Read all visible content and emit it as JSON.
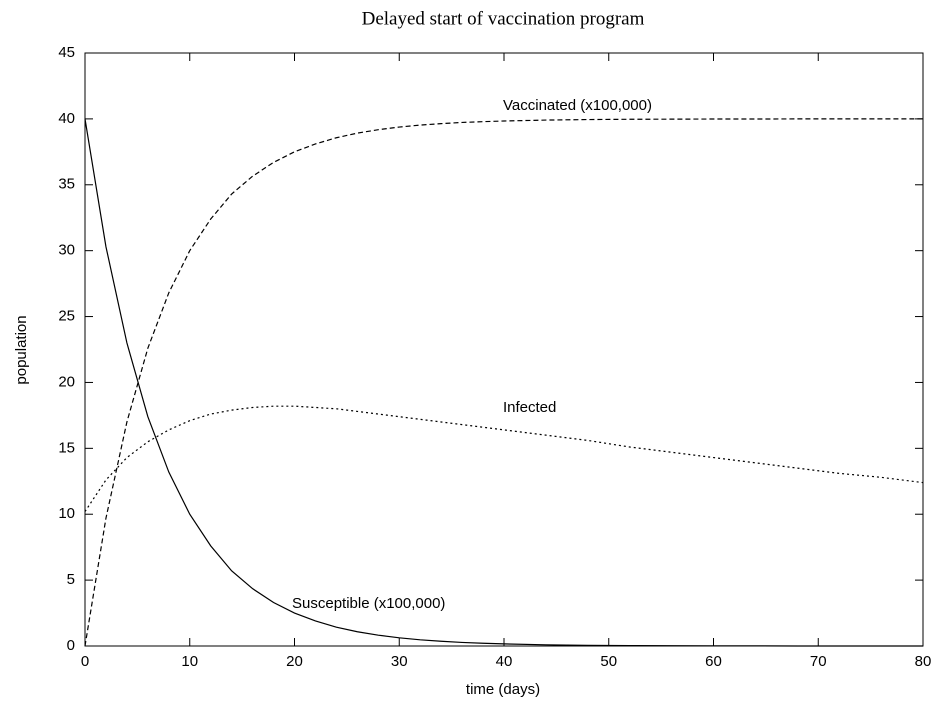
{
  "chart_data": {
    "type": "line",
    "title": "Delayed start of vaccination program",
    "xlabel": "time (days)",
    "ylabel": "population",
    "x": [
      0,
      2,
      4,
      6,
      8,
      10,
      12,
      14,
      16,
      18,
      20,
      22,
      24,
      26,
      28,
      30,
      32,
      34,
      36,
      38,
      40,
      44,
      48,
      52,
      56,
      60,
      64,
      68,
      72,
      76,
      80
    ],
    "series": [
      {
        "name": "Susceptible (x100,000)",
        "color": "#000000",
        "dash": "solid",
        "values": [
          40,
          30.3,
          23.0,
          17.4,
          13.2,
          10.0,
          7.6,
          5.7,
          4.35,
          3.3,
          2.5,
          1.9,
          1.43,
          1.08,
          0.82,
          0.62,
          0.47,
          0.36,
          0.27,
          0.21,
          0.16,
          0.09,
          0.05,
          0.03,
          0.02,
          0.01,
          0.01,
          0,
          0,
          0,
          0
        ]
      },
      {
        "name": "Infected",
        "color": "#000000",
        "dash": "dotted",
        "values": [
          10.2,
          12.6,
          14.3,
          15.5,
          16.4,
          17.1,
          17.6,
          17.9,
          18.1,
          18.2,
          18.2,
          18.1,
          18.0,
          17.8,
          17.6,
          17.4,
          17.2,
          17.0,
          16.8,
          16.6,
          16.4,
          16.0,
          15.6,
          15.1,
          14.7,
          14.3,
          13.9,
          13.5,
          13.1,
          12.8,
          12.4
        ]
      },
      {
        "name": "Vaccinated (x100,000)",
        "color": "#000000",
        "dash": "dashed",
        "values": [
          0,
          9.7,
          17.0,
          22.6,
          26.8,
          30.0,
          32.4,
          34.3,
          35.65,
          36.7,
          37.5,
          38.1,
          38.57,
          38.92,
          39.18,
          39.38,
          39.53,
          39.64,
          39.73,
          39.79,
          39.84,
          39.91,
          39.95,
          39.97,
          39.98,
          39.99,
          39.99,
          40,
          40,
          40,
          40
        ]
      }
    ],
    "xlim": [
      0,
      80
    ],
    "xticks": [
      0,
      10,
      20,
      30,
      40,
      50,
      60,
      70,
      80
    ],
    "ylim": [
      0,
      45
    ],
    "yticks": [
      0,
      5,
      10,
      15,
      20,
      25,
      30,
      35,
      40,
      45
    ]
  }
}
